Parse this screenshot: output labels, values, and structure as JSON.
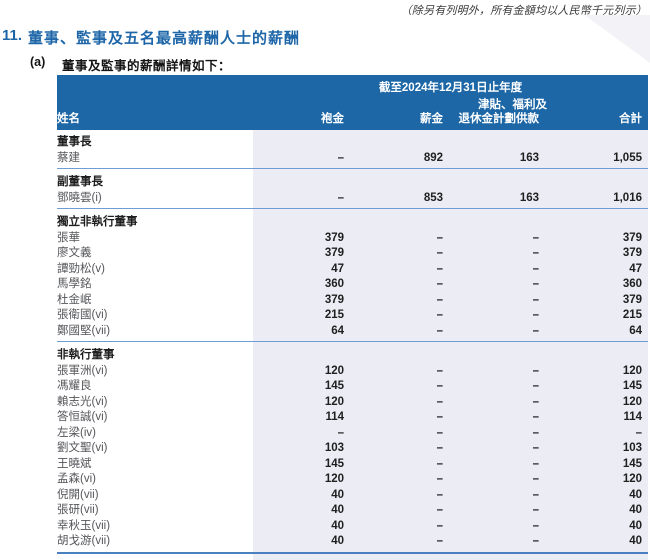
{
  "page": {
    "note_top_right": "（除另有列明外，所有金額均以人民幣千元列示）",
    "section_number": "11.",
    "section_title": "董事、監事及五名最高薪酬人士的薪酬",
    "item_label": "(a)",
    "item_title": "董事及監事的薪酬詳情如下："
  },
  "table": {
    "period_header": "截至2024年12月31日止年度",
    "col_group_line": "津貼、福利及",
    "columns": [
      "姓名",
      "袍金",
      "薪金",
      "退休金計劃供款",
      "合計"
    ],
    "sections": [
      {
        "header": "董事長",
        "rows": [
          {
            "name": "蔡建",
            "fees": "–",
            "salary": "892",
            "benefits": "163",
            "total": "1,055"
          }
        ]
      },
      {
        "header": "副董事長",
        "rows": [
          {
            "name": "鄧曉雲(i)",
            "fees": "–",
            "salary": "853",
            "benefits": "163",
            "total": "1,016"
          }
        ]
      },
      {
        "header": "獨立非執行董事",
        "rows": [
          {
            "name": "張華",
            "fees": "379",
            "salary": "–",
            "benefits": "–",
            "total": "379"
          },
          {
            "name": "廖文義",
            "fees": "379",
            "salary": "–",
            "benefits": "–",
            "total": "379"
          },
          {
            "name": "譚勁松(v)",
            "fees": "47",
            "salary": "–",
            "benefits": "–",
            "total": "47"
          },
          {
            "name": "馬學銘",
            "fees": "360",
            "salary": "–",
            "benefits": "–",
            "total": "360"
          },
          {
            "name": "杜金岷",
            "fees": "379",
            "salary": "–",
            "benefits": "–",
            "total": "379"
          },
          {
            "name": "張衛國(vi)",
            "fees": "215",
            "salary": "–",
            "benefits": "–",
            "total": "215"
          },
          {
            "name": "鄭國堅(vii)",
            "fees": "64",
            "salary": "–",
            "benefits": "–",
            "total": "64"
          }
        ]
      },
      {
        "header": "非執行董事",
        "rows": [
          {
            "name": "張軍洲(vi)",
            "fees": "120",
            "salary": "–",
            "benefits": "–",
            "total": "120"
          },
          {
            "name": "馮耀良",
            "fees": "145",
            "salary": "–",
            "benefits": "–",
            "total": "145"
          },
          {
            "name": "賴志光(vi)",
            "fees": "120",
            "salary": "–",
            "benefits": "–",
            "total": "120"
          },
          {
            "name": "答恒誠(vi)",
            "fees": "114",
            "salary": "–",
            "benefits": "–",
            "total": "114"
          },
          {
            "name": "左梁(iv)",
            "fees": "–",
            "salary": "–",
            "benefits": "–",
            "total": "–"
          },
          {
            "name": "劉文聖(vi)",
            "fees": "103",
            "salary": "–",
            "benefits": "–",
            "total": "103"
          },
          {
            "name": "王曉斌",
            "fees": "145",
            "salary": "–",
            "benefits": "–",
            "total": "145"
          },
          {
            "name": "孟森(vi)",
            "fees": "120",
            "salary": "–",
            "benefits": "–",
            "total": "120"
          },
          {
            "name": "倪開(vii)",
            "fees": "40",
            "salary": "–",
            "benefits": "–",
            "total": "40"
          },
          {
            "name": "張研(vii)",
            "fees": "40",
            "salary": "–",
            "benefits": "–",
            "total": "40"
          },
          {
            "name": "幸秋玉(vii)",
            "fees": "40",
            "salary": "–",
            "benefits": "–",
            "total": "40"
          },
          {
            "name": "胡戈游(vii)",
            "fees": "40",
            "salary": "–",
            "benefits": "–",
            "total": "40"
          }
        ]
      }
    ]
  },
  "colors": {
    "header_bg": "#1d67a6",
    "band_bg": "#ebecf4",
    "rule_line": "#6f9cd2",
    "title_blue": "#1e66a8"
  }
}
